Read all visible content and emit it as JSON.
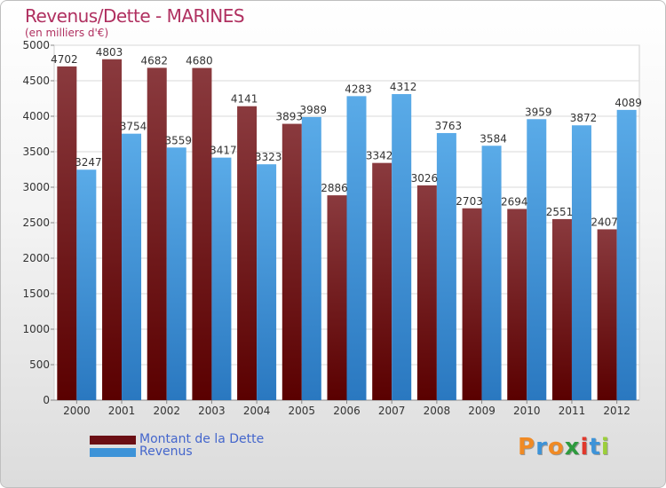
{
  "header": {
    "title": "Revenus/Dette - MARINES",
    "subtitle": "(en milliers d'€)"
  },
  "legend": [
    {
      "label": "Montant de la Dette",
      "color": "#6b0f14"
    },
    {
      "label": "Revenus",
      "color": "#3d93d8"
    }
  ],
  "logo": {
    "text": "Proxiti"
  },
  "colors": {
    "dette_top": "#8a3a3e",
    "dette_bottom": "#5a0000",
    "revenus_top": "#5aabe8",
    "revenus_bottom": "#2a78c0",
    "title": "#b03060",
    "legend_text": "#4466cc"
  },
  "chart_data": {
    "type": "bar",
    "title": "Revenus/Dette - MARINES",
    "subtitle": "(en milliers d'€)",
    "categories": [
      "2000",
      "2001",
      "2002",
      "2003",
      "2004",
      "2005",
      "2006",
      "2007",
      "2008",
      "2009",
      "2010",
      "2011",
      "2012"
    ],
    "series": [
      {
        "name": "Montant de la Dette",
        "values": [
          4702,
          4803,
          4682,
          4680,
          4141,
          3893,
          2886,
          3342,
          3026,
          2703,
          2694,
          2551,
          2407
        ]
      },
      {
        "name": "Revenus",
        "values": [
          3247,
          3754,
          3559,
          3417,
          3323,
          3989,
          4283,
          4312,
          3763,
          3584,
          3959,
          3872,
          4089
        ]
      }
    ],
    "ylim": [
      0,
      5000
    ],
    "yticks": [
      0,
      500,
      1000,
      1500,
      2000,
      2500,
      3000,
      3500,
      4000,
      4500,
      5000
    ],
    "grid": true,
    "legend_position": "bottom-left"
  }
}
